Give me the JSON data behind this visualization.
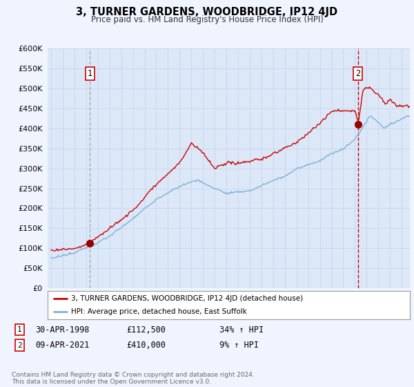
{
  "title": "3, TURNER GARDENS, WOODBRIDGE, IP12 4JD",
  "subtitle": "Price paid vs. HM Land Registry's House Price Index (HPI)",
  "background_color": "#f0f4ff",
  "plot_bg_color": "#dce8f8",
  "grid_color": "#c8d8ec",
  "ylim": [
    0,
    600000
  ],
  "yticks": [
    0,
    50000,
    100000,
    150000,
    200000,
    250000,
    300000,
    350000,
    400000,
    450000,
    500000,
    550000,
    600000
  ],
  "sale1_date": "30-APR-1998",
  "sale1_price": 112500,
  "sale1_hpi": "34% ↑ HPI",
  "sale1_x": 1998.33,
  "sale2_date": "09-APR-2021",
  "sale2_price": 410000,
  "sale2_hpi": "9% ↑ HPI",
  "sale2_x": 2021.27,
  "line1_color": "#cc0000",
  "line2_color": "#7fb0d8",
  "vline1_color": "#aaaaaa",
  "vline2_color": "#cc0000",
  "legend1_label": "3, TURNER GARDENS, WOODBRIDGE, IP12 4JD (detached house)",
  "legend2_label": "HPI: Average price, detached house, East Suffolk",
  "footnote": "Contains HM Land Registry data © Crown copyright and database right 2024.\nThis data is licensed under the Open Government Licence v3.0.",
  "marker_color": "#990000",
  "marker_size": 7
}
